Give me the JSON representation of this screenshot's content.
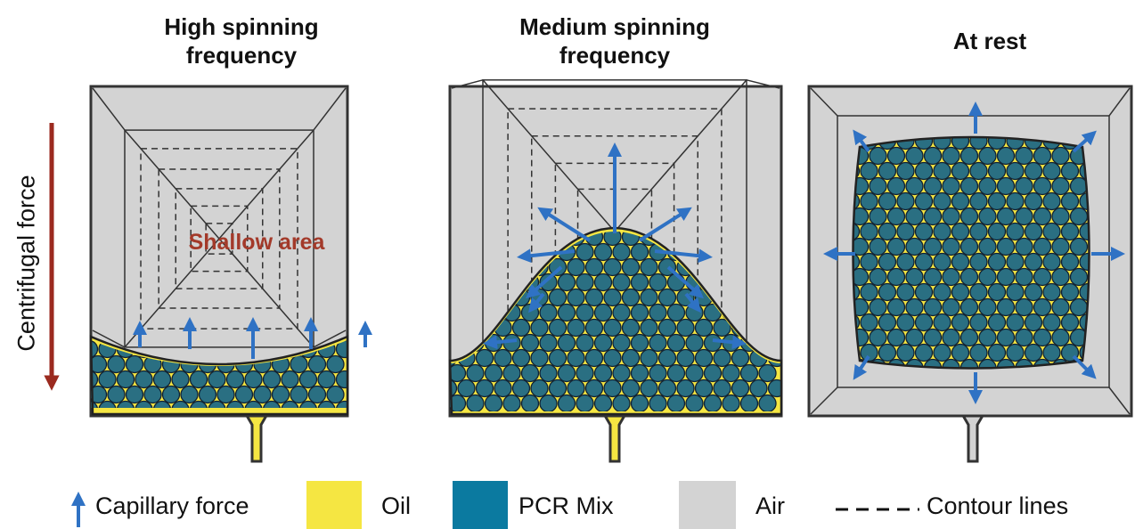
{
  "panels": [
    {
      "title": "High spinning frequency"
    },
    {
      "title": "Medium spinning frequency"
    },
    {
      "title": "At rest"
    }
  ],
  "annotations": {
    "force_axis": "Centrifugal force",
    "shallow": "Shallow area"
  },
  "legend": [
    {
      "label": "Capillary force"
    },
    {
      "label": "Oil"
    },
    {
      "label": "PCR Mix"
    },
    {
      "label": "Air"
    },
    {
      "label": "Contour lines"
    }
  ]
}
